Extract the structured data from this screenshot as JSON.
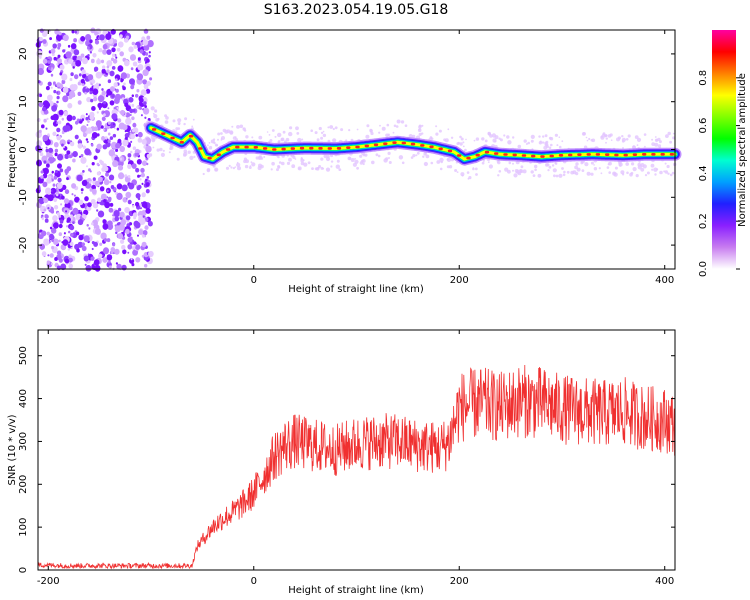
{
  "figure": {
    "title": "S163.2023.054.19.05.G18"
  },
  "chart_data": [
    {
      "type": "heatmap",
      "xlabel": "Height of straight line (km)",
      "ylabel": "Frequency (Hz)",
      "xlim": [
        -210,
        410
      ],
      "ylim": [
        -25,
        25
      ],
      "xticks": [
        "-200",
        "0",
        "200",
        "400"
      ],
      "yticks": [
        "20",
        "10",
        "0",
        "-10",
        "-20"
      ],
      "colorbar": {
        "label": "Normalized spectral amplitude",
        "range": [
          0,
          1
        ],
        "ticks": [
          "0.0",
          "0.2",
          "0.4",
          "0.6",
          "0.8"
        ],
        "colors": [
          "#ffffff",
          "#c87cf0",
          "#8a20ff",
          "#2020ff",
          "#00a0ff",
          "#00ffd0",
          "#00ff00",
          "#80ff00",
          "#ffff00",
          "#ff8000",
          "#ff0000",
          "#ff00a0"
        ]
      },
      "noise_region_x": [
        -210,
        -100
      ],
      "ridge": {
        "x": [
          -100,
          -90,
          -80,
          -70,
          -62,
          -55,
          -48,
          -40,
          -30,
          -20,
          0,
          20,
          50,
          80,
          100,
          120,
          140,
          160,
          175,
          185,
          195,
          205,
          215,
          225,
          240,
          260,
          280,
          300,
          330,
          360,
          380,
          400,
          410
        ],
        "y": [
          4.5,
          3.5,
          2.5,
          1.5,
          3.0,
          1.5,
          -1.5,
          -2.0,
          -0.5,
          0.5,
          0.5,
          0.0,
          0.3,
          0.2,
          0.5,
          1.0,
          1.5,
          1.0,
          0.5,
          0.0,
          -0.5,
          -2.0,
          -1.5,
          -0.5,
          -1.0,
          -1.2,
          -1.5,
          -1.2,
          -1.0,
          -1.2,
          -1.0,
          -1.0,
          -1.0
        ]
      }
    },
    {
      "type": "line",
      "xlabel": "Height of straight line (km)",
      "ylabel": "SNR (10 * v/v)",
      "xlim": [
        -210,
        410
      ],
      "ylim": [
        0,
        560
      ],
      "xticks": [
        "-200",
        "0",
        "200",
        "400"
      ],
      "yticks": [
        "500",
        "400",
        "300",
        "200",
        "100",
        "0"
      ],
      "color": "#f03030",
      "series": [
        {
          "x": [
            -210,
            -180,
            -150,
            -120,
            -90,
            -60,
            -58,
            -55,
            -50,
            -45,
            -40,
            -30,
            -20,
            -10,
            0,
            10,
            20,
            30,
            40,
            50,
            60,
            80,
            100,
            120,
            140,
            160,
            180,
            185,
            190,
            200,
            220,
            240,
            260,
            280,
            300,
            320,
            340,
            360,
            380,
            400,
            410
          ],
          "y": [
            12,
            10,
            10,
            10,
            10,
            10,
            30,
            55,
            70,
            85,
            100,
            120,
            135,
            155,
            180,
            220,
            265,
            290,
            300,
            295,
            290,
            280,
            295,
            300,
            300,
            290,
            285,
            290,
            300,
            380,
            390,
            380,
            395,
            390,
            375,
            370,
            365,
            370,
            355,
            350,
            340
          ]
        }
      ]
    }
  ]
}
